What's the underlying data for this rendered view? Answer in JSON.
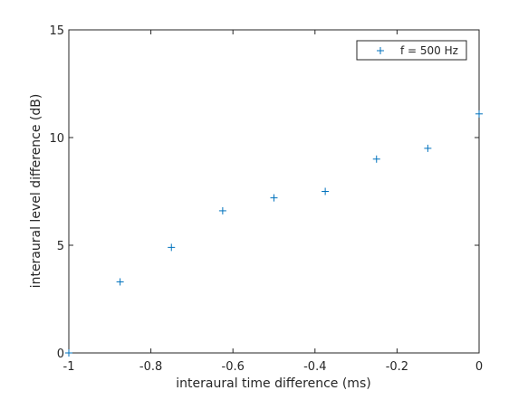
{
  "chart_data": {
    "type": "scatter",
    "title": "",
    "xlabel": "interaural time difference (ms)",
    "ylabel": "interaural level difference (dB)",
    "xlim": [
      -1,
      0
    ],
    "ylim": [
      0,
      15
    ],
    "xticks": [
      -1,
      -0.8,
      -0.6,
      -0.4,
      -0.2,
      0
    ],
    "xtick_labels": [
      "-1",
      "-0.8",
      "-0.6",
      "-0.4",
      "-0.2",
      "0"
    ],
    "yticks": [
      0,
      5,
      10,
      15
    ],
    "ytick_labels": [
      "0",
      "5",
      "10",
      "15"
    ],
    "grid": false,
    "legend_position": "top-right",
    "series": [
      {
        "name": "f = 500 Hz",
        "marker": "+",
        "color": "#0072bd",
        "x": [
          -1,
          -0.875,
          -0.75,
          -0.625,
          -0.5,
          -0.375,
          -0.25,
          -0.125,
          0
        ],
        "y": [
          0,
          3.3,
          4.9,
          6.6,
          7.2,
          7.5,
          9.0,
          9.5,
          11.1
        ]
      }
    ]
  }
}
